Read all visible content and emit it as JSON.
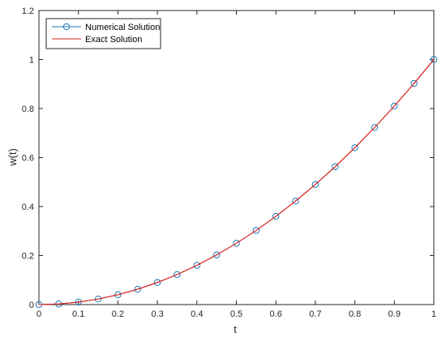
{
  "chart_data": {
    "type": "line",
    "xlabel": "t",
    "ylabel": "w(t)",
    "xlim": [
      0,
      1
    ],
    "ylim": [
      0,
      1.2
    ],
    "xticks": [
      "0",
      "0.1",
      "0.2",
      "0.3",
      "0.4",
      "0.5",
      "0.6",
      "0.7",
      "0.8",
      "0.9",
      "1"
    ],
    "yticks": [
      "0",
      "0.2",
      "0.4",
      "0.6",
      "0.8",
      "1",
      "1.2"
    ],
    "grid": false,
    "legend_position": "top-left",
    "series": [
      {
        "name": "Numerical Solution",
        "style": "line-with-circle-markers",
        "color": "#1f77b4",
        "x": [
          0,
          0.05,
          0.1,
          0.15,
          0.2,
          0.25,
          0.3,
          0.35,
          0.4,
          0.45,
          0.5,
          0.55,
          0.6,
          0.65,
          0.7,
          0.75,
          0.8,
          0.85,
          0.9,
          0.95,
          1.0
        ],
        "y": [
          0,
          0.0025,
          0.01,
          0.0225,
          0.04,
          0.0625,
          0.09,
          0.1225,
          0.16,
          0.2025,
          0.25,
          0.3025,
          0.36,
          0.4225,
          0.49,
          0.5625,
          0.64,
          0.7225,
          0.81,
          0.9025,
          1.0
        ]
      },
      {
        "name": "Exact Solution",
        "style": "line",
        "color": "#e0201b",
        "x": [
          0,
          0.05,
          0.1,
          0.15,
          0.2,
          0.25,
          0.3,
          0.35,
          0.4,
          0.45,
          0.5,
          0.55,
          0.6,
          0.65,
          0.7,
          0.75,
          0.8,
          0.85,
          0.9,
          0.95,
          1.0
        ],
        "y": [
          0,
          0.0025,
          0.01,
          0.0225,
          0.04,
          0.0625,
          0.09,
          0.1225,
          0.16,
          0.2025,
          0.25,
          0.3025,
          0.36,
          0.4225,
          0.49,
          0.5625,
          0.64,
          0.7225,
          0.81,
          0.9025,
          1.0
        ]
      }
    ]
  }
}
